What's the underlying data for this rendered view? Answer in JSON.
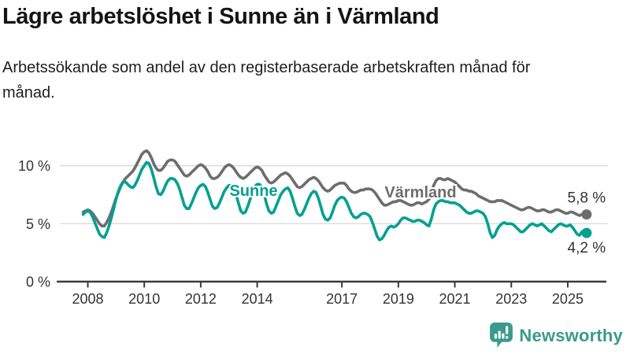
{
  "header": {
    "title": "Lägre arbetslöshet i Sunne än i Värmland",
    "subtitle": "Arbetssökande som andel av den registerbaserade arbetskraften månad för månad."
  },
  "branding": {
    "wordmark": "Newsworthy",
    "logo_icon": "bar-chart-speech-bubble-icon",
    "color": "#3a9a8d"
  },
  "chart_data": {
    "type": "line",
    "title": "Lägre arbetslöshet i Sunne än i Värmland",
    "ylabel": "",
    "xlabel": "",
    "unit": "%",
    "grid": true,
    "x_start_year": 2007.8333,
    "x_step_years": 0.0833,
    "xlim": [
      2007.8,
      2025.9
    ],
    "ylim": [
      0,
      12.5
    ],
    "x_ticks": [
      2008,
      2010,
      2012,
      2014,
      2017,
      2019,
      2021,
      2023,
      2025
    ],
    "y_ticks": [
      {
        "value": 0,
        "label": "0 %"
      },
      {
        "value": 5,
        "label": "5 %"
      },
      {
        "value": 10,
        "label": "10 %"
      }
    ],
    "series": [
      {
        "name": "Värmland",
        "color": "#6d6d6d",
        "end_label": "5,8 %",
        "end_value": 5.8,
        "values": [
          6.0,
          6.1,
          6.2,
          6.1,
          5.9,
          5.6,
          5.3,
          5.0,
          4.8,
          4.8,
          5.1,
          5.5,
          6.0,
          6.6,
          7.2,
          7.7,
          8.2,
          8.6,
          8.9,
          9.1,
          9.3,
          9.5,
          9.8,
          10.2,
          10.6,
          11.0,
          11.2,
          11.3,
          11.1,
          10.7,
          10.2,
          9.8,
          9.6,
          9.6,
          9.8,
          10.1,
          10.4,
          10.5,
          10.5,
          10.4,
          10.1,
          9.8,
          9.5,
          9.2,
          9.1,
          9.2,
          9.4,
          9.6,
          9.8,
          10.0,
          10.1,
          10.0,
          9.8,
          9.5,
          9.1,
          8.9,
          8.9,
          9.0,
          9.2,
          9.5,
          9.8,
          10.0,
          10.1,
          10.0,
          9.8,
          9.5,
          9.2,
          9.0,
          8.9,
          9.0,
          9.2,
          9.4,
          9.6,
          9.8,
          9.9,
          9.8,
          9.6,
          9.2,
          8.9,
          8.6,
          8.5,
          8.6,
          8.8,
          9.0,
          9.2,
          9.3,
          9.4,
          9.3,
          9.1,
          8.8,
          8.5,
          8.2,
          8.1,
          8.2,
          8.4,
          8.6,
          8.8,
          8.9,
          9.0,
          8.9,
          8.7,
          8.4,
          8.1,
          7.9,
          7.8,
          7.9,
          8.1,
          8.3,
          8.4,
          8.5,
          8.5,
          8.5,
          8.3,
          8.0,
          7.8,
          7.7,
          7.7,
          7.8,
          7.9,
          7.9,
          8.0,
          8.0,
          8.0,
          7.9,
          7.7,
          7.4,
          7.1,
          6.8,
          6.6,
          6.6,
          6.7,
          6.8,
          6.9,
          6.9,
          7.0,
          7.0,
          6.9,
          6.8,
          6.7,
          6.6,
          6.6,
          6.7,
          6.8,
          6.8,
          6.7,
          6.8,
          6.9,
          7.1,
          7.6,
          8.3,
          8.7,
          8.9,
          8.9,
          8.8,
          8.8,
          8.9,
          8.8,
          8.7,
          8.6,
          8.4,
          8.2,
          8.0,
          7.9,
          7.9,
          7.8,
          7.8,
          7.7,
          7.6,
          7.4,
          7.3,
          7.2,
          7.1,
          7.0,
          6.9,
          6.9,
          6.9,
          7.0,
          7.0,
          7.0,
          6.9,
          6.8,
          6.7,
          6.6,
          6.5,
          6.4,
          6.3,
          6.2,
          6.2,
          6.3,
          6.4,
          6.4,
          6.3,
          6.2,
          6.1,
          6.1,
          6.2,
          6.2,
          6.1,
          6.0,
          6.0,
          6.1,
          6.2,
          6.2,
          6.1,
          6.0,
          5.9,
          5.9,
          6.0,
          6.0,
          5.9,
          5.8,
          5.7,
          5.8,
          5.9,
          5.8
        ]
      },
      {
        "name": "Sunne",
        "color": "#00a091",
        "end_label": "4,2 %",
        "end_value": 4.2,
        "values": [
          5.8,
          6.0,
          6.1,
          6.0,
          5.6,
          5.1,
          4.6,
          4.1,
          3.9,
          3.8,
          4.2,
          4.8,
          5.5,
          6.3,
          7.1,
          7.8,
          8.3,
          8.6,
          8.6,
          8.4,
          8.2,
          8.1,
          8.3,
          8.7,
          9.2,
          9.7,
          10.0,
          10.3,
          10.2,
          9.7,
          9.0,
          8.2,
          7.6,
          7.5,
          7.8,
          8.3,
          8.7,
          8.9,
          8.9,
          8.8,
          8.5,
          8.0,
          7.3,
          6.6,
          6.3,
          6.3,
          6.7,
          7.2,
          7.7,
          8.1,
          8.3,
          8.4,
          8.2,
          7.7,
          7.1,
          6.5,
          6.3,
          6.4,
          6.8,
          7.3,
          7.8,
          8.1,
          8.3,
          8.3,
          8.0,
          7.5,
          6.8,
          6.1,
          5.9,
          6.0,
          6.5,
          7.1,
          7.7,
          8.2,
          8.4,
          8.4,
          8.1,
          7.5,
          6.7,
          6.1,
          5.9,
          6.0,
          6.5,
          7.0,
          7.5,
          7.8,
          8.0,
          8.1,
          7.8,
          7.2,
          6.5,
          5.9,
          5.7,
          5.8,
          6.2,
          6.7,
          7.2,
          7.6,
          7.8,
          7.7,
          7.2,
          6.5,
          5.8,
          5.4,
          5.3,
          5.5,
          6.0,
          6.6,
          7.0,
          7.2,
          7.3,
          7.2,
          6.9,
          6.4,
          5.9,
          5.6,
          5.5,
          5.6,
          5.8,
          5.9,
          5.9,
          5.8,
          5.6,
          5.1,
          4.5,
          3.9,
          3.6,
          3.7,
          4.0,
          4.4,
          4.7,
          4.8,
          4.7,
          4.8,
          5.0,
          5.3,
          5.5,
          5.5,
          5.4,
          5.3,
          5.2,
          5.2,
          5.3,
          5.3,
          5.2,
          5.1,
          4.9,
          4.8,
          5.4,
          6.2,
          6.7,
          6.9,
          7.0,
          7.0,
          6.9,
          6.9,
          6.8,
          6.8,
          6.8,
          6.7,
          6.6,
          6.4,
          6.2,
          6.0,
          5.9,
          5.9,
          6.0,
          6.1,
          6.1,
          6.0,
          5.9,
          5.6,
          5.0,
          4.2,
          3.8,
          4.0,
          4.5,
          4.8,
          5.0,
          5.1,
          5.0,
          5.0,
          5.0,
          4.9,
          4.7,
          4.5,
          4.3,
          4.3,
          4.5,
          4.7,
          4.9,
          5.0,
          4.9,
          4.8,
          4.9,
          5.0,
          4.8,
          4.6,
          4.4,
          4.3,
          4.5,
          4.7,
          4.9,
          5.0,
          4.9,
          4.8,
          4.8,
          4.9,
          4.7,
          4.4,
          4.1,
          4.0,
          4.3,
          4.4,
          4.2
        ]
      }
    ]
  }
}
